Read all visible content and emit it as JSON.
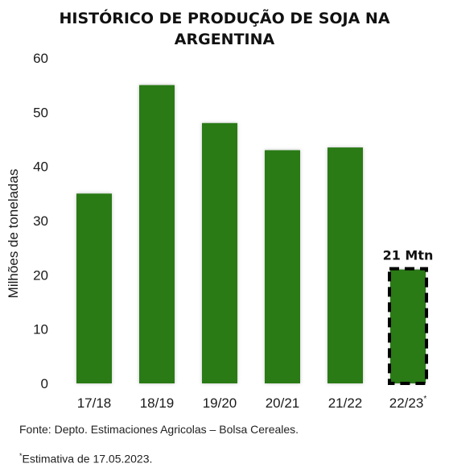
{
  "title": {
    "line1": "HISTÓRICO DE PRODUÇÃO DE SOJA NA",
    "line2": "ARGENTINA"
  },
  "chart_data": {
    "type": "bar",
    "title": "HISTÓRICO DE PRODUÇÃO DE SOJA NA ARGENTINA",
    "ylabel": "Milhões de toneladas",
    "xlabel": "",
    "categories": [
      "17/18",
      "18/19",
      "19/20",
      "20/21",
      "21/22",
      "22/23"
    ],
    "category_suffix_last": "*",
    "values": [
      35,
      55,
      48,
      43,
      43.5,
      21
    ],
    "ylim": [
      0,
      60
    ],
    "yticks": [
      0,
      10,
      20,
      30,
      40,
      50,
      60
    ],
    "grid": false,
    "bar_color": "#2b7a17",
    "highlight": {
      "index": 5,
      "label": "21 Mtn",
      "border": "dashed black"
    }
  },
  "footnotes": {
    "source": "Fonte: Depto. Estimaciones Agricolas – Bolsa Cereales.",
    "estimate_marker": "*",
    "estimate": "Estimativa de 17.05.2023."
  }
}
